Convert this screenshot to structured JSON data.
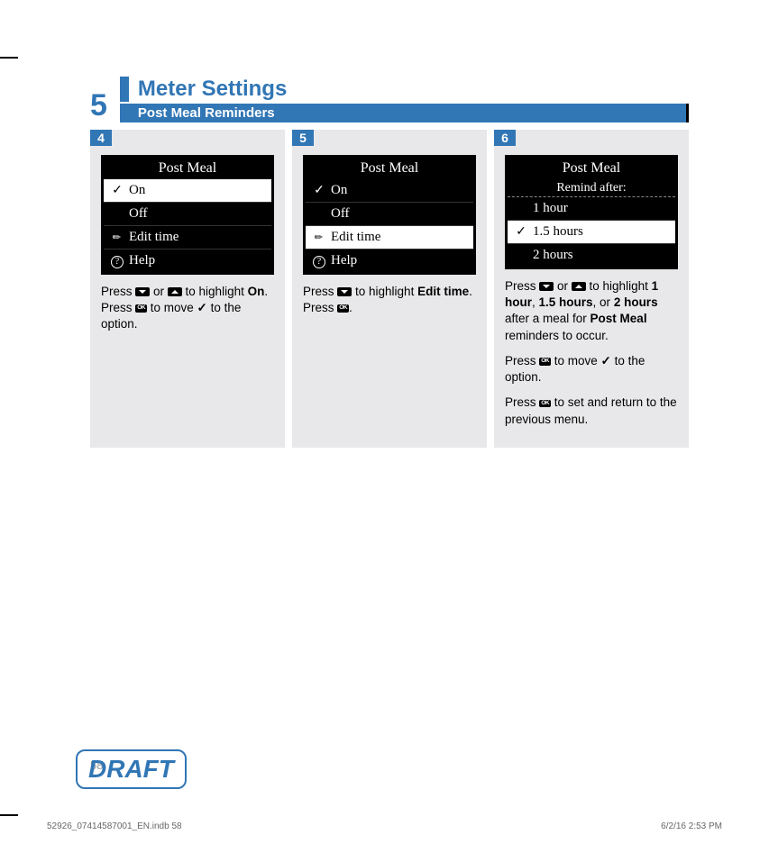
{
  "chapter": "5",
  "title": "Meter Settings",
  "subtitle": "Post Meal Reminders",
  "steps": [
    {
      "num": "4",
      "screen": {
        "title": "Post Meal",
        "rows": [
          {
            "icon": "check",
            "label": "On",
            "sel": true
          },
          {
            "icon": "",
            "label": "Off",
            "sel": false
          },
          {
            "icon": "pencil",
            "label": "Edit time",
            "sel": false
          },
          {
            "icon": "help",
            "label": "Help",
            "sel": false
          }
        ]
      },
      "instr": "Press {down} or {up} to highlight <b>On</b>. Press {ok} to move {check} to the option."
    },
    {
      "num": "5",
      "screen": {
        "title": "Post Meal",
        "rows": [
          {
            "icon": "check",
            "label": "On",
            "sel": false
          },
          {
            "icon": "",
            "label": "Off",
            "sel": false
          },
          {
            "icon": "pencil",
            "label": "Edit time",
            "sel": true
          },
          {
            "icon": "help",
            "label": "Help",
            "sel": false
          }
        ]
      },
      "instr": "Press {down} to highlight <b>Edit time</b>. Press {ok}."
    },
    {
      "num": "6",
      "screen": {
        "title": "Post Meal",
        "sub": "Remind after:",
        "rows": [
          {
            "icon": "",
            "label": "1 hour",
            "sel": false
          },
          {
            "icon": "check",
            "label": "1.5 hours",
            "sel": true
          },
          {
            "icon": "",
            "label": "2 hours",
            "sel": false
          }
        ]
      },
      "instr": "Press {down} or {up} to highlight <b>1 hour</b>, <b>1.5 hours</b>, or <b>2 hours</b> after a meal for <b>Post Meal</b> reminders to occur.|Press {ok} to move {check} to the option.|Press {ok} to set and return to the previous menu."
    }
  ],
  "draft": "DRAFT",
  "pagenum": "58",
  "footer_left": "52926_07414587001_EN.indb   58",
  "footer_right": "6/2/16   2:53 PM"
}
